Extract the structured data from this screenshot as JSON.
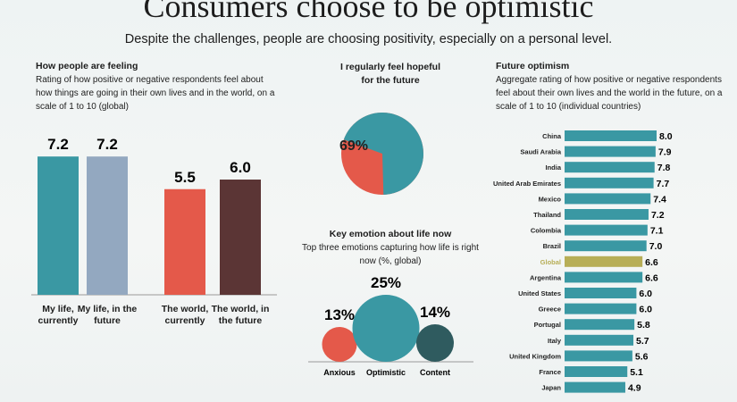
{
  "header": {
    "title": "Consumers choose to be optimistic",
    "subtitle": "Despite the challenges, people are choosing positivity, especially on a personal level."
  },
  "chart_data": [
    {
      "type": "bar",
      "title": "How people are feeling",
      "subtitle": "Rating of how positive or negative respondents feel about how things are going in their own lives and in the world, on a scale of 1 to 10 (global)",
      "categories": [
        "My life, currently",
        "My life, in the future",
        "The world, currently",
        "The world, in the future"
      ],
      "values": [
        7.2,
        7.2,
        5.5,
        6.0
      ],
      "value_labels": [
        "7.2",
        "7.2",
        "5.5",
        "6.0"
      ],
      "colors": [
        "#3a98a3",
        "#93a8c0",
        "#e4594a",
        "#5b3535"
      ]
    },
    {
      "type": "pie",
      "title": "I regularly feel hopeful for the future",
      "values": [
        69
      ],
      "value_labels": [
        "69%"
      ],
      "colors": [
        "#3a98a3"
      ],
      "background_color": "#e4594a"
    },
    {
      "type": "bubble",
      "title": "Key emotion about life now",
      "subtitle": "Top three emotions capturing how life is right now (%, global)",
      "categories": [
        "Anxious",
        "Optimistic",
        "Content"
      ],
      "values": [
        13,
        25,
        14
      ],
      "value_labels": [
        "13%",
        "25%",
        "14%"
      ],
      "colors": [
        "#e4594a",
        "#3a98a3",
        "#2f5b5f"
      ]
    },
    {
      "type": "hbar",
      "title": "Future optimism",
      "subtitle": "Aggregate rating of how positive or negative respondents feel about their own lives and the world in the future, on a scale of 1 to 10 (individual countries)",
      "categories": [
        "China",
        "Saudi Arabia",
        "India",
        "United Arab Emirates",
        "Mexico",
        "Thailand",
        "Colombia",
        "Brazil",
        "Global",
        "Argentina",
        "United States",
        "Greece",
        "Portugal",
        "Italy",
        "United Kingdom",
        "France",
        "Japan"
      ],
      "values": [
        8.0,
        7.9,
        7.8,
        7.7,
        7.4,
        7.2,
        7.1,
        7.0,
        6.6,
        6.6,
        6.0,
        6.0,
        5.8,
        5.7,
        5.6,
        5.1,
        4.9
      ],
      "value_labels": [
        "8.0",
        "7.9",
        "7.8",
        "7.7",
        "7.4",
        "7.2",
        "7.1",
        "7.0",
        "6.6",
        "6.6",
        "6.0",
        "6.0",
        "5.8",
        "5.7",
        "5.6",
        "5.1",
        "4.9"
      ],
      "colors": [
        "#3a98a3",
        "#3a98a3",
        "#3a98a3",
        "#3a98a3",
        "#3a98a3",
        "#3a98a3",
        "#3a98a3",
        "#3a98a3",
        "#b7ae56",
        "#3a98a3",
        "#3a98a3",
        "#3a98a3",
        "#3a98a3",
        "#3a98a3",
        "#3a98a3",
        "#3a98a3",
        "#3a98a3"
      ]
    }
  ]
}
